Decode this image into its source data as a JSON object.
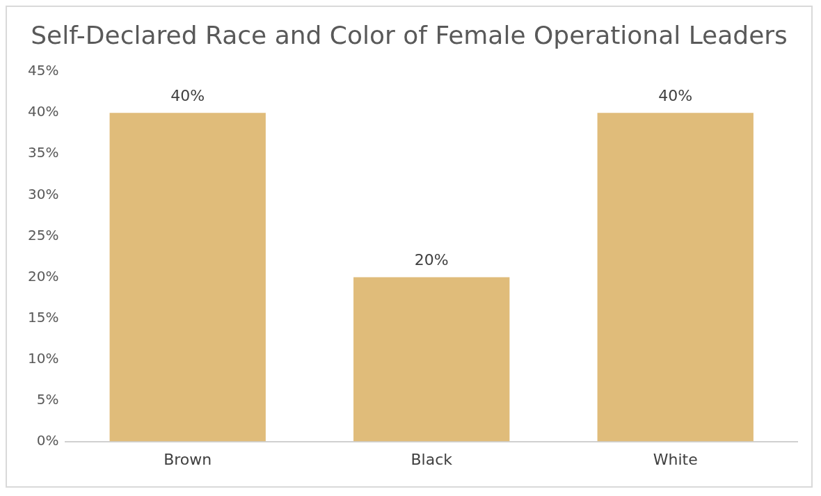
{
  "chart_data": {
    "type": "bar",
    "title": "Self-Declared Race and Color of Female Operational Leaders",
    "categories": [
      "Brown",
      "Black",
      "White"
    ],
    "values": [
      40,
      20,
      40
    ],
    "value_labels": [
      "40%",
      "20%",
      "40%"
    ],
    "color": "#e0bc7a",
    "ylim": [
      0,
      45
    ],
    "yticks": [
      {
        "value": 0,
        "label": "0%"
      },
      {
        "value": 5,
        "label": "5%"
      },
      {
        "value": 10,
        "label": "10%"
      },
      {
        "value": 15,
        "label": "15%"
      },
      {
        "value": 20,
        "label": "20%"
      },
      {
        "value": 25,
        "label": "25%"
      },
      {
        "value": 30,
        "label": "30%"
      },
      {
        "value": 35,
        "label": "35%"
      },
      {
        "value": 40,
        "label": "40%"
      },
      {
        "value": 45,
        "label": "45%"
      }
    ],
    "grid": false,
    "legend": false
  }
}
